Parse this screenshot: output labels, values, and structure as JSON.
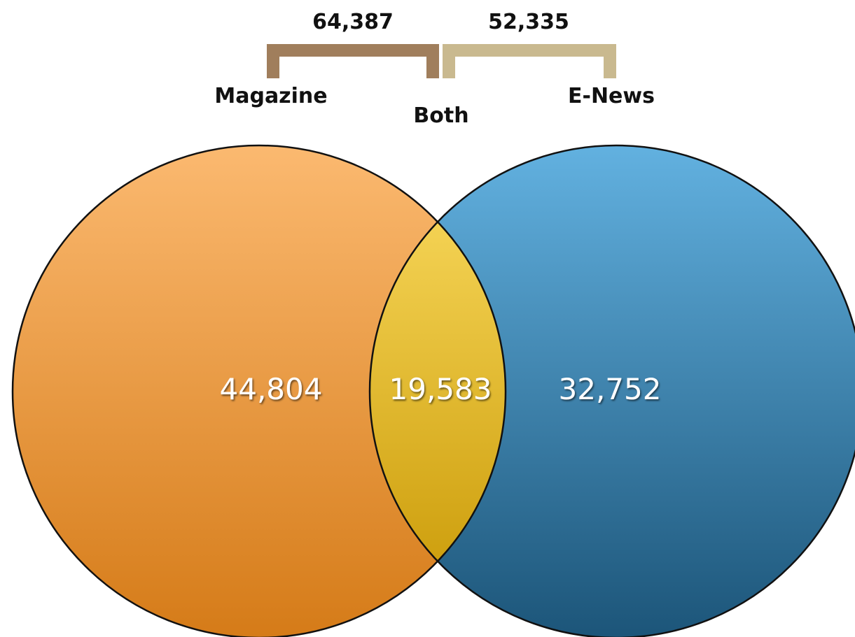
{
  "diagram": {
    "type": "venn",
    "totals": {
      "magazine_total": "64,387",
      "enews_total": "52,335"
    },
    "sets": {
      "magazine_label": "Magazine",
      "both_label": "Both",
      "enews_label": "E-News"
    },
    "regions": {
      "magazine_only": "44,804",
      "both": "19,583",
      "enews_only": "32,752"
    },
    "colors": {
      "magazine": "#f0a858",
      "magazine_dark": "#d57f1e",
      "enews": "#4f9fcf",
      "enews_dark": "#1f5a80",
      "overlap": "#f4cf45",
      "overlap_dark": "#c99a05",
      "bracket_magazine": "#a07e5c",
      "bracket_enews": "#c9b98f"
    }
  }
}
